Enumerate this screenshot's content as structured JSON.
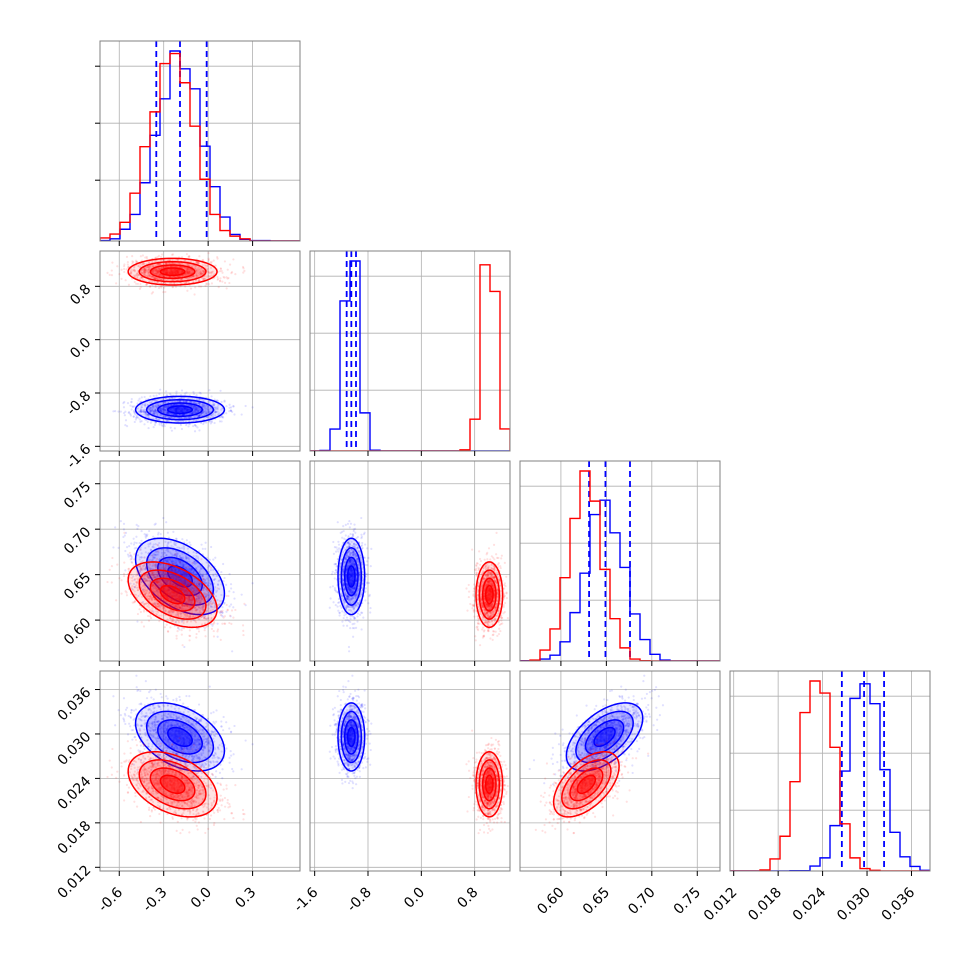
{
  "chart_data": {
    "type": "corner",
    "title": "",
    "grid": true,
    "series": [
      {
        "color": "#0000ff",
        "histogram_type": "step",
        "show_quantiles": true,
        "marginals": [
          {
            "mean": -0.19,
            "sd": 0.15,
            "quantiles": [
              -0.35,
              -0.19,
              -0.01
            ]
          },
          {
            "mean": -1.05,
            "sd": 0.1,
            "quantiles": [
              -1.12,
              -1.05,
              -0.98
            ]
          },
          {
            "mean": 0.648,
            "sd": 0.021,
            "quantiles": [
              0.631,
              0.649,
              0.676
            ]
          },
          {
            "mean": 0.0296,
            "sd": 0.0023,
            "quantiles": [
              0.0266,
              0.0296,
              0.0323
            ]
          }
        ],
        "correlations": {
          "2-0": -0.45,
          "3-0": -0.4,
          "3-2": 0.55,
          "1-0": 0.0,
          "2-1": 0.0,
          "3-1": 0.0
        }
      },
      {
        "color": "#ff0000",
        "histogram_type": "step",
        "show_quantiles": false,
        "marginals": [
          {
            "mean": -0.24,
            "sd": 0.15
          },
          {
            "mean": 1.02,
            "sd": 0.1
          },
          {
            "mean": 0.628,
            "sd": 0.018
          },
          {
            "mean": 0.0232,
            "sd": 0.0022
          }
        ],
        "correlations": {
          "2-0": -0.45,
          "3-0": -0.4,
          "3-2": 0.55,
          "1-0": 0.0,
          "2-1": 0.0,
          "3-1": 0.0
        }
      }
    ],
    "parameters": [
      {
        "xlim": [
          -0.73,
          0.62
        ],
        "ticks": [
          "-0.6",
          "-0.3",
          "0.0",
          "0.3"
        ],
        "tick_values": [
          -0.6,
          -0.3,
          0.0,
          0.3
        ]
      },
      {
        "xlim": [
          -1.67,
          1.33
        ],
        "ticks": [
          "-1.6",
          "-0.8",
          "0.0",
          "0.8"
        ],
        "tick_values": [
          -1.6,
          -0.8,
          0.0,
          0.8
        ]
      },
      {
        "xlim": [
          0.555,
          0.775
        ],
        "ticks": [
          "0.60",
          "0.65",
          "0.70",
          "0.75"
        ],
        "tick_values": [
          0.6,
          0.65,
          0.7,
          0.75
        ]
      },
      {
        "xlim": [
          0.0115,
          0.0385
        ],
        "ticks": [
          "0.012",
          "0.018",
          "0.024",
          "0.030",
          "0.036"
        ],
        "tick_values": [
          0.012,
          0.018,
          0.024,
          0.03,
          0.036
        ]
      }
    ]
  }
}
